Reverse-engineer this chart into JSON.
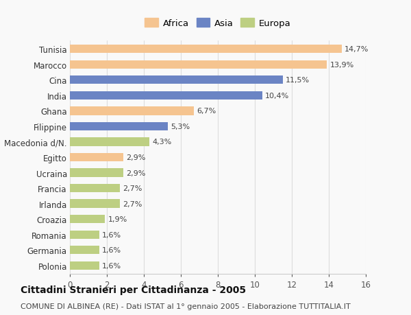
{
  "categories": [
    "Tunisia",
    "Marocco",
    "Cina",
    "India",
    "Ghana",
    "Filippine",
    "Macedonia d/N.",
    "Egitto",
    "Ucraina",
    "Francia",
    "Irlanda",
    "Croazia",
    "Romania",
    "Germania",
    "Polonia"
  ],
  "values": [
    14.7,
    13.9,
    11.5,
    10.4,
    6.7,
    5.3,
    4.3,
    2.9,
    2.9,
    2.7,
    2.7,
    1.9,
    1.6,
    1.6,
    1.6
  ],
  "labels": [
    "14,7%",
    "13,9%",
    "11,5%",
    "10,4%",
    "6,7%",
    "5,3%",
    "4,3%",
    "2,9%",
    "2,9%",
    "2,7%",
    "2,7%",
    "1,9%",
    "1,6%",
    "1,6%",
    "1,6%"
  ],
  "continents": [
    "Africa",
    "Africa",
    "Asia",
    "Asia",
    "Africa",
    "Asia",
    "Europa",
    "Africa",
    "Europa",
    "Europa",
    "Europa",
    "Europa",
    "Europa",
    "Europa",
    "Europa"
  ],
  "colors": {
    "Africa": "#F5C490",
    "Asia": "#6B84C4",
    "Europa": "#BDCF82"
  },
  "legend_labels": [
    "Africa",
    "Asia",
    "Europa"
  ],
  "xlim": [
    0,
    16
  ],
  "xticks": [
    0,
    2,
    4,
    6,
    8,
    10,
    12,
    14,
    16
  ],
  "title": "Cittadini Stranieri per Cittadinanza - 2005",
  "subtitle": "COMUNE DI ALBINEA (RE) - Dati ISTAT al 1° gennaio 2005 - Elaborazione TUTTITALIA.IT",
  "background_color": "#f9f9f9",
  "grid_color": "#dddddd",
  "bar_height": 0.55,
  "label_fontsize": 8,
  "title_fontsize": 10,
  "subtitle_fontsize": 8,
  "tick_fontsize": 8.5,
  "legend_fontsize": 9.5
}
